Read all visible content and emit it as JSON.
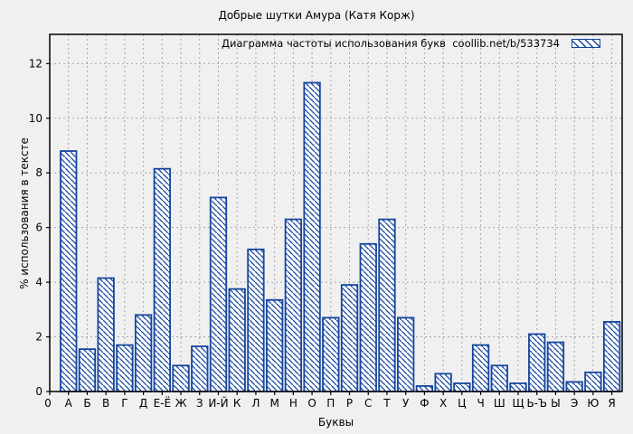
{
  "chart_data": {
    "type": "bar",
    "title": "Добрые шутки Амура (Катя Корж)",
    "legend": {
      "label": "Диаграмма частоты использования букв  coollib.net/b/533734",
      "position": "top-right-inside",
      "swatch_style": "blue-diagonal-hatch"
    },
    "xlabel": "Буквы",
    "ylabel": "% использования в тексте",
    "origin_tick_label": "0",
    "yticks": [
      0,
      2,
      4,
      6,
      8,
      10,
      12
    ],
    "ylim": [
      0,
      13.07
    ],
    "grid": true,
    "categories": [
      "А",
      "Б",
      "В",
      "Г",
      "Д",
      "Е-Ё",
      "Ж",
      "З",
      "И-Й",
      "К",
      "Л",
      "М",
      "Н",
      "О",
      "П",
      "Р",
      "С",
      "Т",
      "У",
      "Ф",
      "Х",
      "Ц",
      "Ч",
      "Ш",
      "Щ",
      "Ь-Ъ",
      "Ы",
      "Э",
      "Ю",
      "Я"
    ],
    "values": [
      8.8,
      1.55,
      4.15,
      1.7,
      2.8,
      8.15,
      0.95,
      1.65,
      7.1,
      3.75,
      5.2,
      3.35,
      6.3,
      11.3,
      2.7,
      3.9,
      5.4,
      6.3,
      2.7,
      0.2,
      0.65,
      0.3,
      1.7,
      0.95,
      0.3,
      2.1,
      1.8,
      0.35,
      0.7,
      2.55
    ],
    "colors": {
      "bar_stroke": "#15459e",
      "hatch": "#15459e",
      "bar_fill": "#ffffff",
      "background": "#f0f0f0",
      "grid": "#a8a8a8",
      "axis": "#000000"
    }
  }
}
